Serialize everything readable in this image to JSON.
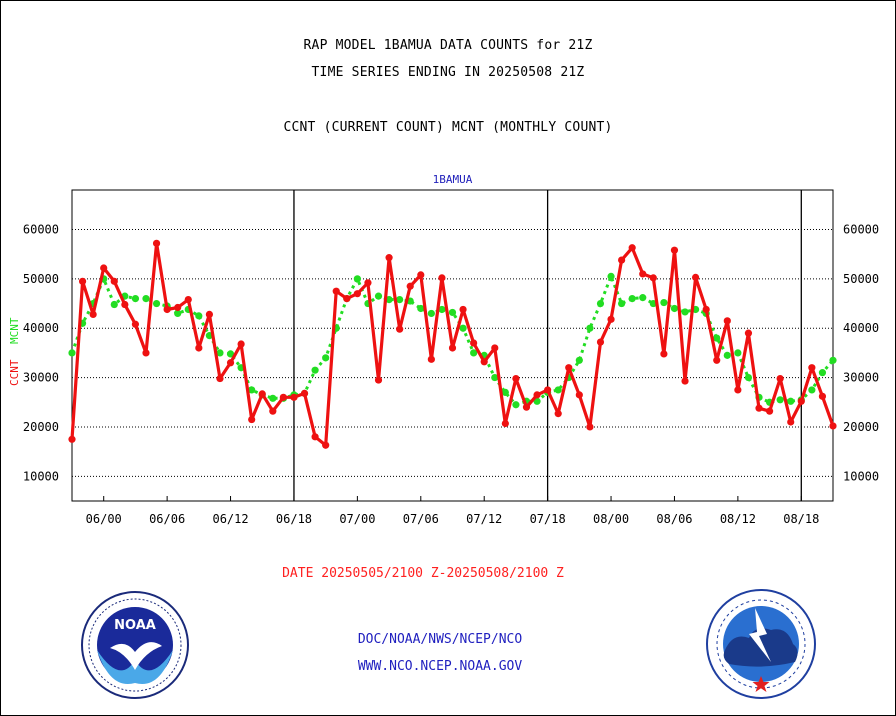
{
  "header": {
    "line1": "RAP MODEL 1BAMUA DATA COUNTS for 21Z",
    "line2": "TIME SERIES ENDING IN 20250508 21Z",
    "line3": "CCNT (CURRENT COUNT) MCNT (MONTHLY COUNT)"
  },
  "footer": {
    "date_range": "DATE 20250505/2100 Z-20250508/2100 Z",
    "org": "DOC/NOAA/NWS/NCEP/NCO",
    "url": "WWW.NCO.NCEP.NOAA.GOV"
  },
  "logos": {
    "left": {
      "icon": "noaa-logo",
      "text": "NOAA"
    },
    "right": {
      "icon": "national-weather-service-logo"
    }
  },
  "colors": {
    "ccnt": "#ee1111",
    "mcnt": "#22dd22",
    "url_text": "#1f1fbf",
    "plot_label": "#2222bb"
  },
  "chart_data": {
    "type": "line",
    "title": "1BAMUA",
    "ylabel_left": "CCNT",
    "ylabel_right": "MCNT",
    "x_tick_labels": [
      "06/00",
      "06/06",
      "06/12",
      "06/18",
      "07/00",
      "07/06",
      "07/12",
      "07/18",
      "08/00",
      "08/06",
      "08/12",
      "08/18"
    ],
    "x_ticks_hours": [
      3,
      9,
      15,
      21,
      27,
      33,
      39,
      45,
      51,
      57,
      63,
      69
    ],
    "x_range_hours": [
      0,
      72
    ],
    "day_separators_hours": [
      21,
      45,
      69
    ],
    "y_ticks": [
      10000,
      20000,
      30000,
      40000,
      50000,
      60000
    ],
    "ylim": [
      5000,
      68000
    ],
    "grid": "horizontal dotted",
    "series": [
      {
        "name": "CCNT",
        "style": "solid",
        "x": [
          0,
          1,
          2,
          3,
          4,
          5,
          6,
          7,
          8,
          9,
          10,
          11,
          12,
          13,
          14,
          15,
          16,
          17,
          18,
          19,
          20,
          21,
          22,
          23,
          24,
          25,
          26,
          27,
          28,
          29,
          30,
          31,
          32,
          33,
          34,
          35,
          36,
          37,
          38,
          39,
          40,
          41,
          42,
          43,
          44,
          45,
          46,
          47,
          48,
          49,
          50,
          51,
          52,
          53,
          54,
          55,
          56,
          57,
          58,
          59,
          60,
          61,
          62,
          63,
          64,
          65,
          66,
          67,
          68,
          69,
          70,
          71,
          72
        ],
        "values": [
          17500,
          49500,
          42800,
          52200,
          49500,
          44800,
          40800,
          35000,
          57200,
          43800,
          44200,
          45800,
          36000,
          42800,
          29800,
          33000,
          36800,
          21500,
          26700,
          23200,
          26000,
          26000,
          26800,
          18000,
          16300,
          47500,
          46000,
          47000,
          49200,
          29500,
          54300,
          39800,
          48500,
          50800,
          33700,
          50200,
          36000,
          43800,
          37000,
          33200,
          36000,
          20700,
          29800,
          24000,
          26500,
          27500,
          22700,
          32000,
          26500,
          20000,
          37200,
          41800,
          53800,
          56300,
          51000,
          50200,
          34800,
          55800,
          29300,
          50300,
          43800,
          33500,
          41500,
          27500,
          39000,
          23800,
          23200,
          29800,
          21000,
          25200,
          32000,
          26200,
          20200
        ]
      },
      {
        "name": "MCNT",
        "style": "dotted",
        "x": [
          0,
          1,
          2,
          3,
          4,
          5,
          6,
          7,
          8,
          9,
          10,
          11,
          12,
          13,
          14,
          15,
          16,
          17,
          18,
          19,
          20,
          21,
          22,
          23,
          24,
          25,
          26,
          27,
          28,
          29,
          30,
          31,
          32,
          33,
          34,
          35,
          36,
          37,
          38,
          39,
          40,
          41,
          42,
          43,
          44,
          45,
          46,
          47,
          48,
          49,
          50,
          51,
          52,
          53,
          54,
          55,
          56,
          57,
          58,
          59,
          60,
          61,
          62,
          63,
          64,
          65,
          66,
          67,
          68,
          69,
          70,
          71,
          72
        ],
        "values": [
          35000,
          41000,
          45000,
          50000,
          44800,
          46500,
          46000,
          46000,
          45000,
          44500,
          43000,
          43800,
          42500,
          38500,
          35000,
          34800,
          32000,
          27500,
          26500,
          25800,
          25800,
          26500,
          26800,
          31500,
          34000,
          40000,
          46000,
          50000,
          45000,
          46500,
          45800,
          45800,
          45500,
          44000,
          43000,
          43800,
          43200,
          40000,
          35000,
          34500,
          30000,
          27000,
          24500,
          25200,
          25200,
          27000,
          27500,
          30000,
          33500,
          40000,
          45000,
          50500,
          45000,
          46000,
          46200,
          45000,
          45200,
          44000,
          43300,
          43800,
          43000,
          38000,
          34500,
          35000,
          30000,
          26000,
          25000,
          25500,
          25200,
          25500,
          27500,
          31000,
          33500
        ]
      }
    ]
  }
}
